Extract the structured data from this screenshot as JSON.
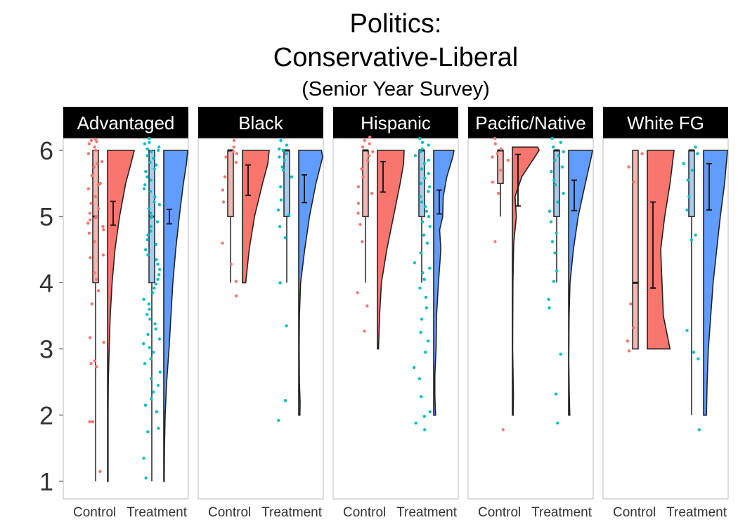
{
  "chart_data": {
    "type": "raincloud",
    "title": "Politics:",
    "subtitle": "Conservative-Liberal",
    "caption": "(Senior Year Survey)",
    "ylim": [
      1,
      6
    ],
    "yticks": [
      1,
      2,
      3,
      4,
      5,
      6
    ],
    "categories": [
      "Control",
      "Treatment"
    ],
    "colors": {
      "control_fill": "#F8766D",
      "control_box": "#F5B7B1",
      "control_dot": "#F8766D",
      "treatment_fill": "#619CFF",
      "treatment_box": "#A9CCEE",
      "treatment_dot": "#00BFC4",
      "strip": "#000000",
      "outline": "#222222"
    },
    "panels": [
      {
        "label": "Advantaged",
        "groups": [
          {
            "name": "Control",
            "min": 1,
            "q1": 4,
            "median": 5,
            "q3": 6,
            "max": 6,
            "mean": 5.05,
            "se": 0.18,
            "density": [
              [
                1,
                0.02
              ],
              [
                1.5,
                0.02
              ],
              [
                2,
                0.02
              ],
              [
                2.5,
                0.03
              ],
              [
                3,
                0.06
              ],
              [
                3.5,
                0.1
              ],
              [
                4,
                0.17
              ],
              [
                4.5,
                0.28
              ],
              [
                5,
                0.45
              ],
              [
                5.5,
                0.68
              ],
              [
                5.8,
                0.88
              ],
              [
                6,
                1.0
              ]
            ],
            "points": [
              6.17,
              6.13,
              6.1,
              6.15,
              6.05,
              6.0,
              5.95,
              5.83,
              5.8,
              5.75,
              5.62,
              5.5,
              5.48,
              5.42,
              5.3,
              5.2,
              5.12,
              5.05,
              5.0,
              4.98,
              4.95,
              4.9,
              4.85,
              4.8,
              4.75,
              4.62,
              4.42,
              4.38,
              4.15,
              4.05,
              3.88,
              3.68,
              3.17,
              3.1,
              2.82,
              2.78,
              2.73,
              1.9,
              1.9,
              1.15
            ]
          },
          {
            "name": "Treatment",
            "min": 1,
            "q1": 4,
            "median": 5,
            "q3": 6,
            "max": 6,
            "mean": 5.0,
            "se": 0.11,
            "density": [
              [
                1,
                0.02
              ],
              [
                1.5,
                0.03
              ],
              [
                2,
                0.06
              ],
              [
                2.5,
                0.12
              ],
              [
                3,
                0.22
              ],
              [
                3.5,
                0.3
              ],
              [
                4,
                0.38
              ],
              [
                4.5,
                0.5
              ],
              [
                5,
                0.65
              ],
              [
                5.5,
                0.82
              ],
              [
                5.8,
                0.95
              ],
              [
                6,
                1.0
              ]
            ],
            "points": [
              6.18,
              6.12,
              6.1,
              6.05,
              6.02,
              6.0,
              5.98,
              5.92,
              5.88,
              5.82,
              5.78,
              5.72,
              5.68,
              5.6,
              5.55,
              5.48,
              5.42,
              5.38,
              5.3,
              5.22,
              5.18,
              5.12,
              5.05,
              5.0,
              4.98,
              4.92,
              4.85,
              4.78,
              4.72,
              4.65,
              4.58,
              4.5,
              4.42,
              4.35,
              4.28,
              4.2,
              4.12,
              4.05,
              3.98,
              3.92,
              3.85,
              3.75,
              3.68,
              3.6,
              3.52,
              3.45,
              3.38,
              3.3,
              3.22,
              3.15,
              3.08,
              3.02,
              2.95,
              2.85,
              2.78,
              2.65,
              2.55,
              2.45,
              2.35,
              2.25,
              2.15,
              2.05,
              1.8,
              1.75,
              1.35,
              1.05
            ]
          }
        ]
      },
      {
        "label": "Black",
        "groups": [
          {
            "name": "Control",
            "min": 4,
            "q1": 5,
            "median": 6,
            "q3": 6,
            "max": 6,
            "mean": 5.55,
            "se": 0.23,
            "density": [
              [
                4,
                0.12
              ],
              [
                4.5,
                0.25
              ],
              [
                5,
                0.45
              ],
              [
                5.5,
                0.75
              ],
              [
                5.8,
                0.95
              ],
              [
                6,
                1.0
              ]
            ],
            "points": [
              6.15,
              6.05,
              5.98,
              5.95,
              5.9,
              5.82,
              5.6,
              5.4,
              5.22,
              4.6,
              4.28,
              4.02,
              3.8
            ]
          },
          {
            "name": "Treatment",
            "min": 4,
            "q1": 5,
            "median": 6,
            "q3": 6,
            "max": 6,
            "mean": 5.42,
            "se": 0.21,
            "density": [
              [
                2,
                0.05
              ],
              [
                2.2,
                0.06
              ],
              [
                2.5,
                0.03
              ],
              [
                3,
                0.02
              ],
              [
                3.5,
                0.03
              ],
              [
                4,
                0.08
              ],
              [
                4.5,
                0.25
              ],
              [
                5,
                0.45
              ],
              [
                5.5,
                0.72
              ],
              [
                5.9,
                1.0
              ],
              [
                6,
                0.95
              ]
            ],
            "points": [
              6.15,
              6.08,
              6.02,
              6.0,
              5.95,
              5.9,
              5.85,
              5.75,
              5.7,
              5.6,
              5.45,
              5.25,
              5.1,
              5.02,
              4.85,
              4.68,
              4.0,
              3.35,
              2.22,
              1.92
            ]
          }
        ]
      },
      {
        "label": "Hispanic",
        "groups": [
          {
            "name": "Control",
            "min": 4,
            "q1": 5,
            "median": 6,
            "q3": 6,
            "max": 6,
            "mean": 5.6,
            "se": 0.23,
            "density": [
              [
                3,
                0.04
              ],
              [
                3.5,
                0.08
              ],
              [
                4,
                0.15
              ],
              [
                4.5,
                0.35
              ],
              [
                5,
                0.6
              ],
              [
                5.5,
                0.85
              ],
              [
                5.8,
                0.98
              ],
              [
                6,
                1.0
              ]
            ],
            "points": [
              6.2,
              6.15,
              6.1,
              6.05,
              5.98,
              5.92,
              5.85,
              5.72,
              5.6,
              5.45,
              5.35,
              5.2,
              5.05,
              4.88,
              4.62,
              3.85,
              3.65,
              3.27
            ]
          },
          {
            "name": "Treatment",
            "min": 4,
            "q1": 5,
            "median": 6,
            "q3": 6,
            "max": 6,
            "mean": 5.22,
            "se": 0.18,
            "density": [
              [
                2,
                0.08
              ],
              [
                2.3,
                0.05
              ],
              [
                2.6,
                0.05
              ],
              [
                3,
                0.1
              ],
              [
                3.5,
                0.12
              ],
              [
                4,
                0.2
              ],
              [
                4.5,
                0.3
              ],
              [
                4.8,
                0.25
              ],
              [
                5,
                0.38
              ],
              [
                5.3,
                0.4
              ],
              [
                5.6,
                0.55
              ],
              [
                5.9,
                0.8
              ],
              [
                6,
                0.85
              ]
            ],
            "points": [
              6.18,
              6.12,
              6.08,
              6.02,
              5.98,
              5.92,
              5.85,
              5.8,
              5.72,
              5.65,
              5.58,
              5.5,
              5.45,
              5.38,
              5.3,
              5.22,
              5.15,
              5.08,
              5.0,
              4.92,
              4.85,
              4.72,
              4.6,
              4.45,
              4.3,
              4.22,
              4.15,
              4.05,
              3.92,
              3.78,
              3.62,
              3.45,
              3.25,
              3.12,
              2.95,
              2.72,
              2.55,
              2.28,
              2.05,
              1.98,
              1.88,
              1.78
            ]
          }
        ]
      },
      {
        "label": "Pacific/Native",
        "groups": [
          {
            "name": "Control",
            "min": 5,
            "q1": 5.5,
            "median": 6,
            "q3": 6,
            "max": 6,
            "mean": 5.55,
            "se": 0.39,
            "density": [
              [
                2,
                0.03
              ],
              [
                2.3,
                0.04
              ],
              [
                3,
                0.01
              ],
              [
                4,
                0.02
              ],
              [
                4.6,
                0.05
              ],
              [
                5,
                0.15
              ],
              [
                5.3,
                0.1
              ],
              [
                5.6,
                0.35
              ],
              [
                6,
                1.0
              ],
              [
                6.05,
                0.95
              ]
            ],
            "points": [
              6.18,
              6.1,
              6.02,
              5.95,
              5.9,
              5.85,
              5.7,
              5.52,
              5.35,
              4.62,
              1.78
            ]
          },
          {
            "name": "Treatment",
            "min": 4,
            "q1": 5,
            "median": 6,
            "q3": 6,
            "max": 6,
            "mean": 5.32,
            "se": 0.23,
            "density": [
              [
                2,
                0.05
              ],
              [
                2.3,
                0.03
              ],
              [
                2.8,
                0.01
              ],
              [
                3.5,
                0.02
              ],
              [
                4,
                0.06
              ],
              [
                4.5,
                0.2
              ],
              [
                5,
                0.4
              ],
              [
                5.5,
                0.7
              ],
              [
                5.9,
                0.95
              ],
              [
                6,
                1.0
              ]
            ],
            "points": [
              6.18,
              6.12,
              6.05,
              5.98,
              5.92,
              5.85,
              5.75,
              5.68,
              5.55,
              5.48,
              5.35,
              5.22,
              5.08,
              4.92,
              4.75,
              4.62,
              4.45,
              4.18,
              4.02,
              3.75,
              3.62,
              2.92,
              2.32,
              1.88
            ]
          }
        ]
      },
      {
        "label": "White FG",
        "groups": [
          {
            "name": "Control",
            "min": 3,
            "q1": 3,
            "median": 4,
            "q3": 6,
            "max": 6,
            "mean": 4.57,
            "se": 0.65,
            "density": [
              [
                3,
                0.85
              ],
              [
                3.5,
                0.6
              ],
              [
                4,
                0.55
              ],
              [
                4.5,
                0.5
              ],
              [
                5,
                0.65
              ],
              [
                5.5,
                0.85
              ],
              [
                6,
                1.0
              ]
            ],
            "points": [
              5.95,
              5.75,
              5.52,
              3.68,
              3.32,
              3.12,
              2.97
            ]
          },
          {
            "name": "Treatment",
            "min": 2,
            "q1": 5,
            "median": 6,
            "q3": 6,
            "max": 6,
            "mean": 5.45,
            "se": 0.35,
            "density": [
              [
                2,
                0.12
              ],
              [
                2.5,
                0.15
              ],
              [
                3,
                0.2
              ],
              [
                3.5,
                0.3
              ],
              [
                4,
                0.4
              ],
              [
                4.5,
                0.55
              ],
              [
                5,
                0.7
              ],
              [
                5.5,
                0.88
              ],
              [
                6,
                1.0
              ]
            ],
            "points": [
              6.05,
              5.95,
              5.8,
              5.7,
              5.55,
              5.3,
              5.1,
              4.72,
              4.65,
              3.28,
              2.95,
              2.85,
              1.78
            ]
          }
        ]
      }
    ]
  }
}
